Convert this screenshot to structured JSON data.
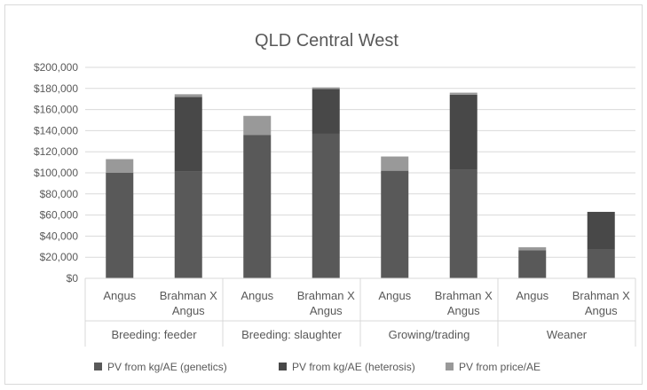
{
  "chart_data": {
    "type": "bar",
    "stacked": true,
    "title": "QLD Central West",
    "xlabel": "",
    "ylabel": "",
    "ylim": [
      0,
      200000
    ],
    "yticks": [
      "$0",
      "$20,000",
      "$40,000",
      "$60,000",
      "$80,000",
      "$100,000",
      "$120,000",
      "$140,000",
      "$160,000",
      "$180,000",
      "$200,000"
    ],
    "ytick_values": [
      0,
      20000,
      40000,
      60000,
      80000,
      100000,
      120000,
      140000,
      160000,
      180000,
      200000
    ],
    "grid": true,
    "legend_position": "bottom",
    "groups": [
      "Breeding: feeder",
      "Breeding: slaughter",
      "Growing/trading",
      "Weaner"
    ],
    "categories": [
      [
        "Angus"
      ],
      [
        "Brahman X",
        "Angus"
      ],
      [
        "Angus"
      ],
      [
        "Brahman X",
        "Angus"
      ],
      [
        "Angus"
      ],
      [
        "Brahman X",
        "Angus"
      ],
      [
        "Angus"
      ],
      [
        "Brahman X",
        "Angus"
      ]
    ],
    "series": [
      {
        "name": "PV from kg/AE (genetics)",
        "color": "#595959",
        "values": [
          100000,
          101000,
          136000,
          137000,
          102000,
          103000,
          26500,
          27000
        ]
      },
      {
        "name": "PV from kg/AE (heterosis)",
        "color": "#484848",
        "values": [
          0,
          71000,
          0,
          42500,
          0,
          71000,
          0,
          36000
        ]
      },
      {
        "name": "PV from price/AE",
        "color": "#999999",
        "values": [
          13000,
          2500,
          18000,
          1500,
          13500,
          2000,
          3000,
          0
        ]
      }
    ]
  }
}
